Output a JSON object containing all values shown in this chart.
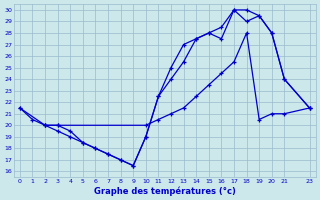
{
  "title": "Graphe des températures (°c)",
  "bg_color": "#cce8ea",
  "line_color": "#0000cc",
  "grid_color": "#99bbcc",
  "ylim": [
    15.5,
    30.5
  ],
  "xlim": [
    -0.5,
    23.5
  ],
  "yticks": [
    16,
    17,
    18,
    19,
    20,
    21,
    22,
    23,
    24,
    25,
    26,
    27,
    28,
    29,
    30
  ],
  "xticks": [
    0,
    1,
    2,
    3,
    4,
    5,
    6,
    7,
    8,
    9,
    10,
    11,
    12,
    13,
    14,
    15,
    16,
    17,
    18,
    19,
    20,
    21,
    23
  ],
  "series1_x": [
    0,
    1,
    2,
    3,
    10,
    11,
    12,
    13,
    14,
    15,
    16,
    17,
    18,
    19,
    20,
    21,
    23
  ],
  "series1_y": [
    21.5,
    20.5,
    20.0,
    20.0,
    20.0,
    20.5,
    21.0,
    21.5,
    22.5,
    23.5,
    24.5,
    25.5,
    28.0,
    20.5,
    21.0,
    21.0,
    21.5
  ],
  "series2_x": [
    0,
    2,
    3,
    4,
    5,
    6,
    7,
    8,
    9,
    10,
    11,
    12,
    13,
    14,
    15,
    16,
    17,
    18,
    19,
    20,
    21,
    23
  ],
  "series2_y": [
    21.5,
    20.0,
    20.0,
    19.5,
    18.5,
    18.0,
    17.5,
    17.0,
    16.5,
    19.0,
    22.5,
    25.0,
    27.0,
    27.5,
    28.0,
    27.5,
    30.0,
    30.0,
    29.5,
    28.0,
    24.0,
    21.5
  ],
  "series3_x": [
    2,
    3,
    4,
    5,
    6,
    7,
    8,
    9,
    10,
    11,
    12,
    13,
    14,
    15,
    16,
    17,
    18,
    19,
    20,
    21,
    23
  ],
  "series3_y": [
    20.0,
    19.5,
    19.0,
    18.5,
    18.0,
    17.5,
    17.0,
    16.5,
    19.0,
    22.5,
    24.0,
    25.5,
    27.5,
    28.0,
    28.5,
    30.0,
    29.0,
    29.5,
    28.0,
    24.0,
    21.5
  ]
}
